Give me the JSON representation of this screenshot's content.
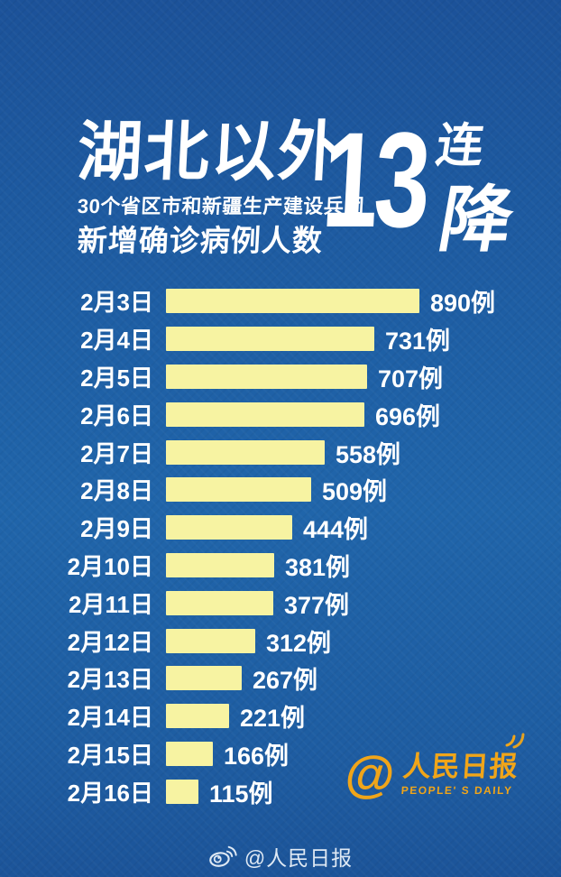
{
  "header": {
    "title": "湖北以外",
    "subtitle1": "30个省区市和新疆生产建设兵团",
    "subtitle2": "新增确诊病例人数",
    "big_number": "13",
    "streak_chars": [
      "连",
      "降"
    ]
  },
  "chart_data": {
    "type": "bar",
    "orientation": "horizontal",
    "title": "湖北以外30个省区市和新疆生产建设兵团新增确诊病例人数 13连降",
    "categories": [
      "2月3日",
      "2月4日",
      "2月5日",
      "2月6日",
      "2月7日",
      "2月8日",
      "2月9日",
      "2月10日",
      "2月11日",
      "2月12日",
      "2月13日",
      "2月14日",
      "2月15日",
      "2月16日"
    ],
    "values": [
      890,
      731,
      707,
      696,
      558,
      509,
      444,
      381,
      377,
      312,
      267,
      221,
      166,
      115
    ],
    "unit": "例",
    "value_label_format": "{value}例",
    "xlim": [
      0,
      900
    ],
    "grid": false,
    "legend": false,
    "bar_color": "#F7F3A2",
    "label_color": "#FFFFFF"
  },
  "logo": {
    "at_symbol": "@",
    "cn": "人民日报",
    "en": "PEOPLE' S DAILY",
    "color": "#F0A519"
  },
  "footer": {
    "handle": "@人民日报"
  },
  "colors": {
    "background": "#1E5DA3",
    "bar": "#F7F3A2",
    "text": "#FFFFFF",
    "gold": "#F0A519"
  }
}
